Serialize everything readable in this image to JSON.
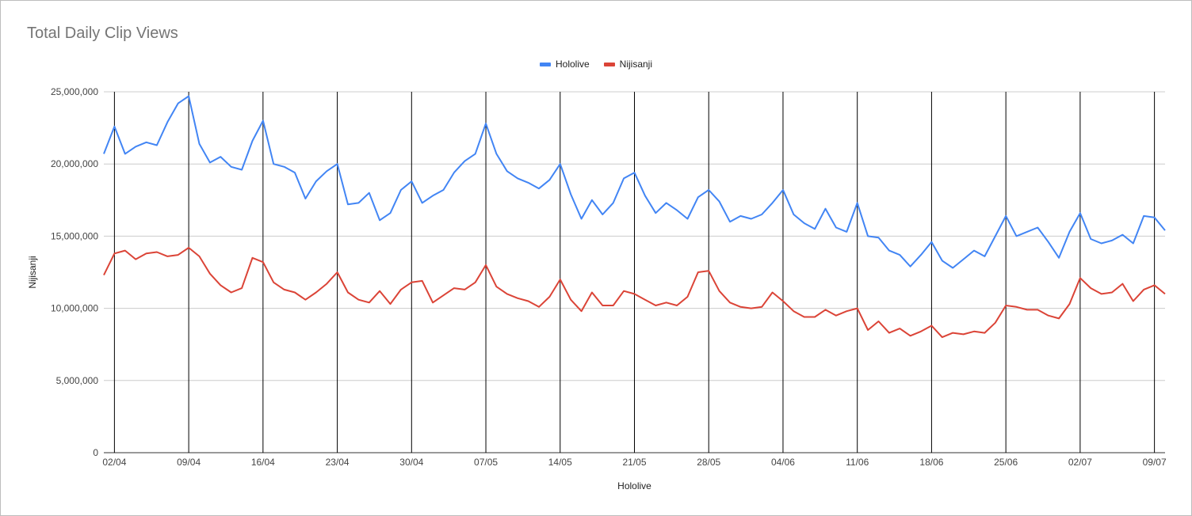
{
  "chart_data": {
    "type": "line",
    "title": "Total Daily Clip Views",
    "xlabel": "Hololive",
    "ylabel": "Nijisanji",
    "ylim": [
      0,
      25000000
    ],
    "yticks": [
      0,
      5000000,
      10000000,
      15000000,
      20000000,
      25000000
    ],
    "ytick_labels": [
      "0",
      "5,000,000",
      "10,000,000",
      "15,000,000",
      "20,000,000",
      "25,000,000"
    ],
    "x_start": "01/04",
    "x_tick_labels": [
      "02/04",
      "09/04",
      "16/04",
      "23/04",
      "30/04",
      "07/05",
      "14/05",
      "21/05",
      "28/05",
      "04/06",
      "11/06",
      "18/06",
      "25/06",
      "02/07",
      "09/07"
    ],
    "x_tick_day_index": [
      1,
      8,
      15,
      22,
      29,
      36,
      43,
      50,
      57,
      64,
      71,
      78,
      85,
      92,
      99
    ],
    "legend_position": "top",
    "grid": true,
    "colors": {
      "Hololive": "#4285f4",
      "Nijisanji": "#db4437"
    },
    "series": [
      {
        "name": "Hololive",
        "values": [
          20700000,
          22600000,
          20700000,
          21200000,
          21500000,
          21300000,
          22900000,
          24200000,
          24700000,
          21400000,
          20100000,
          20500000,
          19800000,
          19600000,
          21600000,
          23000000,
          20000000,
          19800000,
          19400000,
          17600000,
          18800000,
          19500000,
          20000000,
          17200000,
          17300000,
          18000000,
          16100000,
          16600000,
          18200000,
          18800000,
          17300000,
          17800000,
          18200000,
          19400000,
          20200000,
          20700000,
          22800000,
          20700000,
          19500000,
          19000000,
          18700000,
          18300000,
          18900000,
          20000000,
          17900000,
          16200000,
          17500000,
          16500000,
          17300000,
          19000000,
          19400000,
          17800000,
          16600000,
          17300000,
          16800000,
          16200000,
          17700000,
          18200000,
          17400000,
          16000000,
          16400000,
          16200000,
          16500000,
          17300000,
          18200000,
          16500000,
          15900000,
          15500000,
          16900000,
          15600000,
          15300000,
          17300000,
          15000000,
          14900000,
          14000000,
          13700000,
          12900000,
          13700000,
          14600000,
          13300000,
          12800000,
          13400000,
          14000000,
          13600000,
          15000000,
          16400000,
          15000000,
          15300000,
          15600000,
          14600000,
          13500000,
          15300000,
          16600000,
          14800000,
          14500000,
          14700000,
          15100000,
          14500000,
          16400000,
          16300000,
          15400000
        ]
      },
      {
        "name": "Nijisanji",
        "values": [
          12300000,
          13800000,
          14000000,
          13400000,
          13800000,
          13900000,
          13600000,
          13700000,
          14200000,
          13600000,
          12400000,
          11600000,
          11100000,
          11400000,
          13500000,
          13200000,
          11800000,
          11300000,
          11100000,
          10600000,
          11100000,
          11700000,
          12500000,
          11100000,
          10600000,
          10400000,
          11200000,
          10300000,
          11300000,
          11800000,
          11900000,
          10400000,
          10900000,
          11400000,
          11300000,
          11800000,
          13000000,
          11500000,
          11000000,
          10700000,
          10500000,
          10100000,
          10800000,
          12000000,
          10600000,
          9800000,
          11100000,
          10200000,
          10200000,
          11200000,
          11000000,
          10600000,
          10200000,
          10400000,
          10200000,
          10800000,
          12500000,
          12600000,
          11200000,
          10400000,
          10100000,
          10000000,
          10100000,
          11100000,
          10500000,
          9800000,
          9400000,
          9400000,
          9900000,
          9500000,
          9800000,
          10000000,
          8500000,
          9100000,
          8300000,
          8600000,
          8100000,
          8400000,
          8800000,
          8000000,
          8300000,
          8200000,
          8400000,
          8300000,
          9000000,
          10200000,
          10100000,
          9900000,
          9900000,
          9500000,
          9300000,
          10300000,
          12100000,
          11400000,
          11000000,
          11100000,
          11700000,
          10500000,
          11300000,
          11600000,
          11000000
        ]
      }
    ]
  }
}
